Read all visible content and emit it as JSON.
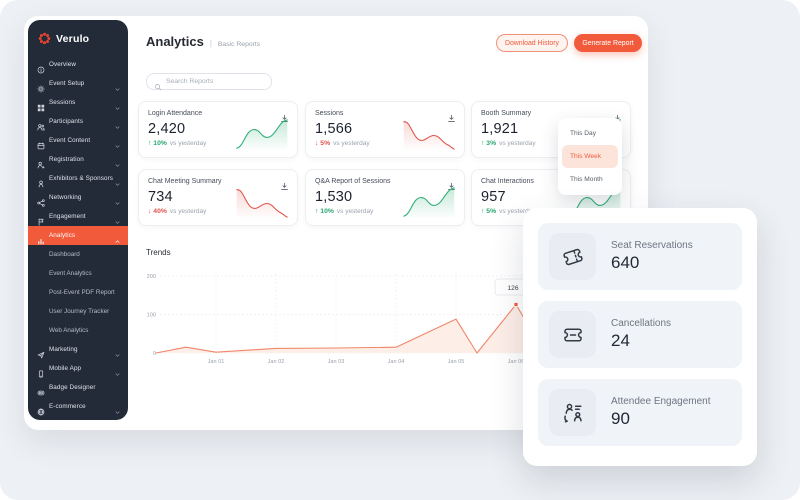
{
  "colors": {
    "accent": "#f15b3c",
    "green": "#27a56f",
    "red": "#e2514a",
    "sidebar_bg": "#232b39",
    "chart_line": "#f0866a",
    "chart_fill": "#fdeee8"
  },
  "sidebar": {
    "logo": "Verulo",
    "items": [
      {
        "label": "Overview",
        "icon": "info-icon",
        "chevron": null
      },
      {
        "label": "Event Setup",
        "icon": "gear-icon",
        "chevron": "down"
      },
      {
        "label": "Sessions",
        "icon": "grid-icon",
        "chevron": "down"
      },
      {
        "label": "Participants",
        "icon": "people-icon",
        "chevron": "down"
      },
      {
        "label": "Event Content",
        "icon": "calendar-icon",
        "chevron": "down"
      },
      {
        "label": "Registration",
        "icon": "person-add-icon",
        "chevron": "down"
      },
      {
        "label": "Exhibitors & Sponsors",
        "icon": "person-icon",
        "chevron": "down"
      },
      {
        "label": "Networking",
        "icon": "share-icon",
        "chevron": "down"
      },
      {
        "label": "Engagement",
        "icon": "flag-icon",
        "chevron": "down"
      },
      {
        "label": "Analytics",
        "icon": "bar-chart-icon",
        "chevron": "up",
        "active": true
      },
      {
        "label": "Dashboard",
        "sub": true
      },
      {
        "label": "Event Analytics",
        "sub": true
      },
      {
        "label": "Post-Event PDF Report",
        "sub": true
      },
      {
        "label": "User Journey Tracker",
        "sub": true
      },
      {
        "label": "Web Analytics",
        "sub": true
      },
      {
        "label": "Marketing",
        "icon": "send-icon",
        "chevron": "down"
      },
      {
        "label": "Mobile App",
        "icon": "phone-icon",
        "chevron": "down"
      },
      {
        "label": "Badge Designer",
        "icon": "badge-icon",
        "chevron": null
      },
      {
        "label": "E-commerce",
        "icon": "globe-icon",
        "chevron": "down"
      }
    ]
  },
  "header": {
    "title": "Analytics",
    "divider": "|",
    "breadcrumb": "Basic Reports",
    "download_history_label": "Download History",
    "generate_report_label": "Generate Report"
  },
  "search": {
    "placeholder": "Search Reports"
  },
  "stat_cards": [
    {
      "title": "Login Attendance",
      "value": "2,420",
      "direction": "up",
      "delta": "10%",
      "suffix": "vs yesterday",
      "trend": "up"
    },
    {
      "title": "Sessions",
      "value": "1,566",
      "direction": "down",
      "delta": "5%",
      "suffix": "vs yesterday",
      "trend": "down"
    },
    {
      "title": "Booth Summary",
      "value": "1,921",
      "direction": "up",
      "delta": "3%",
      "suffix": "vs yesterday",
      "trend": "up"
    },
    {
      "title": "Chat Meeting Summary",
      "value": "734",
      "direction": "down",
      "delta": "40%",
      "suffix": "vs yesterday",
      "trend": "down"
    },
    {
      "title": "Q&A Report of Sessions",
      "value": "1,530",
      "direction": "up",
      "delta": "10%",
      "suffix": "vs yesterday",
      "trend": "up"
    },
    {
      "title": "Chat Interactions",
      "value": "957",
      "direction": "up",
      "delta": "5%",
      "suffix": "vs yesterday",
      "trend": "up"
    }
  ],
  "dropdown": {
    "options": [
      "This Day",
      "This Week",
      "This Month"
    ],
    "selected": "This Week"
  },
  "trends": {
    "title": "Trends"
  },
  "chart_data": {
    "type": "area",
    "title": "Trends",
    "x_ticks": [
      "Jan 01",
      "Jan 02",
      "Jan 03",
      "Jan 04",
      "Jan 05",
      "Jan 06"
    ],
    "y_ticks": [
      0,
      100,
      200
    ],
    "ylim": [
      0,
      220
    ],
    "grid": "dotted",
    "points": [
      [
        0,
        0
      ],
      [
        0.5,
        15
      ],
      [
        1,
        2
      ],
      [
        2,
        12
      ],
      [
        3,
        13
      ],
      [
        4,
        15
      ],
      [
        5,
        88
      ],
      [
        5.35,
        0
      ],
      [
        6,
        126
      ],
      [
        6.25,
        60
      ]
    ],
    "annotation": {
      "x": 6,
      "y": 126,
      "label": "126"
    }
  },
  "summary_cards": [
    {
      "icon": "ticket-icon",
      "title": "Seat Reservations",
      "value": "640"
    },
    {
      "icon": "ticket-cancel-icon",
      "title": "Cancellations",
      "value": "24"
    },
    {
      "icon": "attendees-icon",
      "title": "Attendee Engagement",
      "value": "90"
    }
  ]
}
